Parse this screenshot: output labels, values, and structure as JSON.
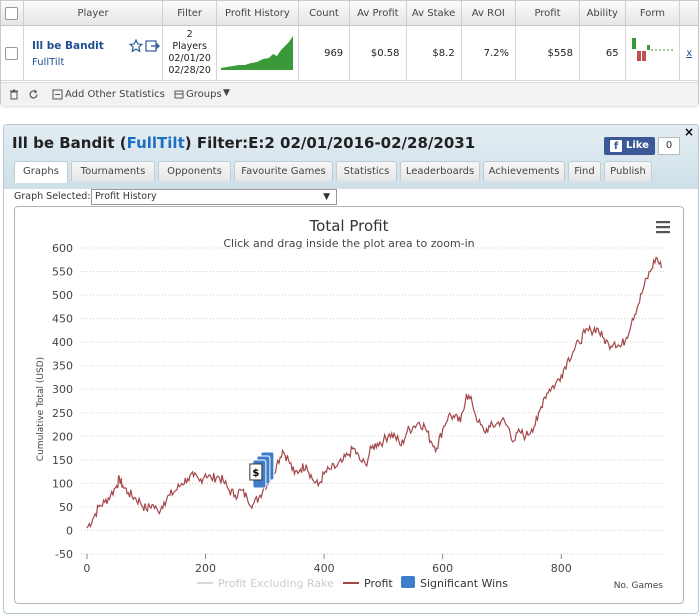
{
  "table": {
    "headers": [
      "Player",
      "Filter",
      "Profit History",
      "Count",
      "Av Profit",
      "Av Stake",
      "Av ROI",
      "Profit",
      "Ability",
      "Form"
    ],
    "row": {
      "player": "Ill be Bandit",
      "site": "FullTilt",
      "filter_lines": [
        "2",
        "Players",
        "02/01/20",
        "02/28/20"
      ],
      "count": "969",
      "av_profit": "$0.58",
      "av_stake": "$8.2",
      "av_roi": "7.2%",
      "profit": "$558",
      "ability": "65",
      "remove": "x"
    }
  },
  "footer": {
    "add_stats": "Add Other Statistics",
    "groups": "Groups"
  },
  "panel": {
    "title_player": "Ill be Bandit",
    "title_site": "FullTilt",
    "title_filter": "Filter:E:2 02/01/2016-02/28/2031",
    "fb_like": "Like",
    "fb_count": "0",
    "close": "×",
    "tabs": [
      "Graphs",
      "Tournaments",
      "Opponents",
      "Favourite Games",
      "Statistics",
      "Leaderboards",
      "Achievements",
      "Find",
      "Publish"
    ],
    "active_tab": 0,
    "graph_selected_label": "Graph Selected:",
    "graph_selected_value": "Profit History"
  },
  "colors": {
    "profit_line": "#a3474a",
    "excluding_rake": "#d9d9d9",
    "significant_wins": "#3e7dc9"
  },
  "chart_data": {
    "type": "line",
    "title": "Total Profit",
    "subtitle": "Click and drag inside the plot area to zoom-in",
    "ylabel": "Cumulative Total (USD)",
    "xlabel": "No. Games",
    "ylim": [
      -50,
      600
    ],
    "yticks": [
      -50,
      0,
      50,
      100,
      150,
      200,
      250,
      300,
      350,
      400,
      450,
      500,
      550,
      600
    ],
    "xticks": [
      0,
      200,
      400,
      600,
      800
    ],
    "xlim": [
      -10,
      975
    ],
    "legend": [
      "Profit Excluding Rake",
      "Profit",
      "Significant Wins"
    ],
    "legend_position": "bottom",
    "grid": true,
    "series": [
      {
        "name": "Profit",
        "x": [
          0,
          10,
          20,
          30,
          40,
          50,
          55,
          60,
          70,
          80,
          90,
          100,
          110,
          120,
          130,
          140,
          150,
          160,
          170,
          180,
          190,
          200,
          210,
          220,
          230,
          240,
          250,
          260,
          270,
          280,
          290,
          300,
          310,
          320,
          330,
          340,
          350,
          360,
          370,
          380,
          390,
          400,
          410,
          420,
          430,
          440,
          450,
          460,
          470,
          480,
          490,
          500,
          510,
          520,
          530,
          540,
          550,
          560,
          570,
          580,
          590,
          600,
          610,
          620,
          630,
          640,
          650,
          660,
          670,
          680,
          690,
          700,
          710,
          720,
          730,
          740,
          750,
          760,
          770,
          780,
          790,
          800,
          810,
          820,
          830,
          840,
          850,
          860,
          870,
          880,
          890,
          900,
          910,
          920,
          930,
          940,
          950,
          960,
          969
        ],
        "values": [
          5,
          25,
          50,
          60,
          75,
          95,
          110,
          95,
          80,
          70,
          60,
          45,
          55,
          40,
          60,
          75,
          85,
          100,
          110,
          115,
          105,
          120,
          110,
          115,
          105,
          85,
          75,
          85,
          70,
          55,
          70,
          95,
          110,
          140,
          170,
          150,
          120,
          130,
          140,
          110,
          95,
          120,
          130,
          135,
          145,
          160,
          175,
          150,
          140,
          175,
          185,
          190,
          205,
          200,
          180,
          210,
          220,
          230,
          220,
          190,
          175,
          215,
          245,
          240,
          230,
          290,
          270,
          230,
          210,
          220,
          225,
          235,
          220,
          190,
          210,
          200,
          215,
          235,
          280,
          300,
          310,
          330,
          360,
          380,
          400,
          420,
          425,
          430,
          410,
          395,
          400,
          390,
          410,
          450,
          480,
          520,
          550,
          580,
          558
        ]
      }
    ],
    "significant_wins": [
      {
        "x": 290,
        "y": 120,
        "label": "$"
      }
    ]
  }
}
